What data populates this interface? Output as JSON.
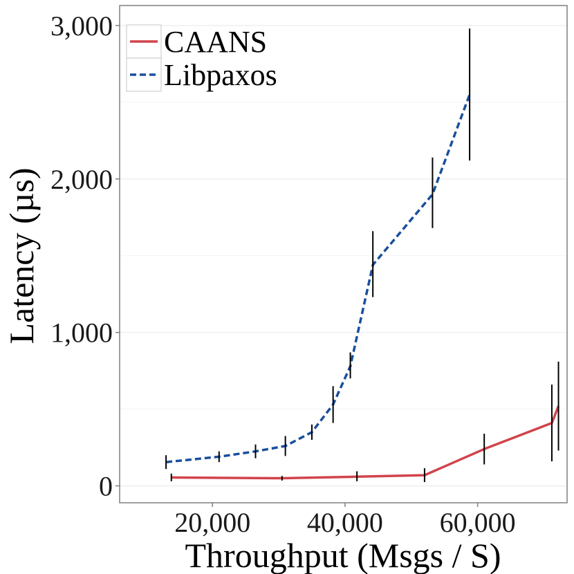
{
  "chart_data": {
    "type": "line",
    "title": "",
    "xlabel": "Throughput (Msgs / S)",
    "ylabel": "Latency (µs)",
    "xlim": [
      6000,
      73500
    ],
    "ylim": [
      -110,
      3130
    ],
    "x_ticks": [
      20000,
      40000,
      60000
    ],
    "x_tick_labels": [
      "20,000",
      "40,000",
      "60,000"
    ],
    "y_ticks": [
      0,
      1000,
      2000,
      3000
    ],
    "y_tick_labels": [
      "0",
      "1,000",
      "2,000",
      "3,000"
    ],
    "y_minor_gridlines": [
      500,
      1500,
      2500
    ],
    "grid": true,
    "legend_position": "top-left",
    "series": [
      {
        "name": "CAANS",
        "color": "#d1434b",
        "dash": "solid",
        "points": [
          {
            "x": 13800,
            "y": 55,
            "err_low": 30,
            "err_high": 80
          },
          {
            "x": 30500,
            "y": 50,
            "err_low": 35,
            "err_high": 65
          },
          {
            "x": 41800,
            "y": 60,
            "err_low": 30,
            "err_high": 95
          },
          {
            "x": 52000,
            "y": 70,
            "err_low": 25,
            "err_high": 115
          },
          {
            "x": 61000,
            "y": 240,
            "err_low": 140,
            "err_high": 340
          },
          {
            "x": 71200,
            "y": 410,
            "err_low": 160,
            "err_high": 660
          },
          {
            "x": 72200,
            "y": 520,
            "err_low": 230,
            "err_high": 810
          }
        ]
      },
      {
        "name": "Libpaxos",
        "color": "#1a4f9c",
        "dash": "dashed",
        "points": [
          {
            "x": 13000,
            "y": 155,
            "err_low": 110,
            "err_high": 200
          },
          {
            "x": 21000,
            "y": 190,
            "err_low": 155,
            "err_high": 225
          },
          {
            "x": 26500,
            "y": 225,
            "err_low": 180,
            "err_high": 270
          },
          {
            "x": 31000,
            "y": 260,
            "err_low": 195,
            "err_high": 325
          },
          {
            "x": 35000,
            "y": 350,
            "err_low": 300,
            "err_high": 400
          },
          {
            "x": 38200,
            "y": 530,
            "err_low": 410,
            "err_high": 650
          },
          {
            "x": 40800,
            "y": 780,
            "err_low": 700,
            "err_high": 870
          },
          {
            "x": 44200,
            "y": 1440,
            "err_low": 1230,
            "err_high": 1660
          },
          {
            "x": 53200,
            "y": 1900,
            "err_low": 1680,
            "err_high": 2140
          },
          {
            "x": 58800,
            "y": 2550,
            "err_low": 2120,
            "err_high": 2980
          }
        ]
      }
    ]
  }
}
